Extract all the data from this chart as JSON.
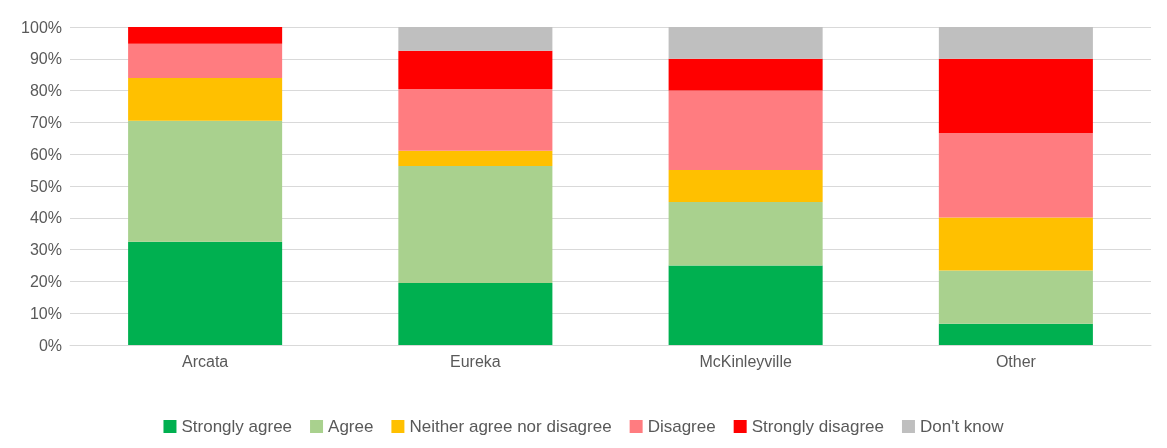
{
  "chart_data": {
    "type": "bar",
    "stacked": true,
    "categories": [
      "Arcata",
      "Eureka",
      "McKinleyville",
      "Other"
    ],
    "series": [
      {
        "name": "Strongly agree",
        "color": "#00b050",
        "values": [
          32.5,
          19.5,
          25,
          6.7
        ]
      },
      {
        "name": "Agree",
        "color": "#a9d18e",
        "values": [
          38,
          36.8,
          20,
          16.7
        ]
      },
      {
        "name": "Neither agree nor disagree",
        "color": "#ffc000",
        "values": [
          13.5,
          4.8,
          10,
          16.7
        ]
      },
      {
        "name": "Disagree",
        "color": "#ff7c80",
        "values": [
          10.7,
          19.4,
          25,
          26.6
        ]
      },
      {
        "name": "Strongly disagree",
        "color": "#ff0000",
        "values": [
          5.3,
          12,
          10,
          23.3
        ]
      },
      {
        "name": "Don't know",
        "color": "#bfbfbf",
        "values": [
          0,
          7.5,
          10,
          10
        ]
      }
    ],
    "ylim": [
      0,
      100
    ],
    "yticks": [
      {
        "value": 0,
        "label": "0%"
      },
      {
        "value": 10,
        "label": "10%"
      },
      {
        "value": 20,
        "label": "20%"
      },
      {
        "value": 30,
        "label": "30%"
      },
      {
        "value": 40,
        "label": "40%"
      },
      {
        "value": 50,
        "label": "50%"
      },
      {
        "value": 60,
        "label": "60%"
      },
      {
        "value": 70,
        "label": "70%"
      },
      {
        "value": 80,
        "label": "80%"
      },
      {
        "value": 90,
        "label": "90%"
      },
      {
        "value": 100,
        "label": "100%"
      }
    ],
    "grid": "y",
    "legend": "bottom"
  }
}
